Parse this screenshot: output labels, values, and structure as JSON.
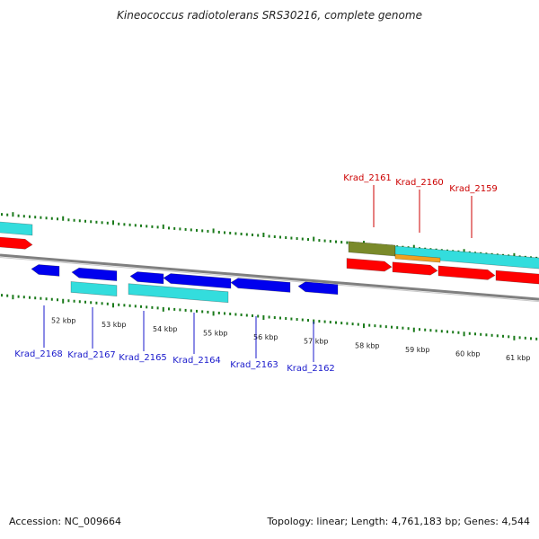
{
  "title": "Kineococcus radiotolerans SRS30216, complete genome",
  "footer": {
    "accession": "Accession: NC_009664",
    "summary": "Topology: linear; Length: 4,761,183 bp; Genes: 4,544"
  },
  "colors": {
    "backbone": "#808080",
    "tick": "#1a7a1a",
    "gene_red": "#ff0000",
    "gene_blue": "#0000ee",
    "cds_cyan": "#33dddd",
    "feature_olive": "#7a8a2a",
    "feature_orange": "#f0a020",
    "label_red": "#cc0000",
    "label_blue": "#1a1acc"
  },
  "kbp_labels": [
    "52 kbp",
    "53 kbp",
    "54 kbp",
    "55 kbp",
    "56 kbp",
    "57 kbp",
    "58 kbp",
    "59 kbp",
    "60 kbp",
    "61 kbp"
  ],
  "genes_upper": [
    {
      "label": "Krad_2161"
    },
    {
      "label": "Krad_2160"
    },
    {
      "label": "Krad_2159"
    }
  ],
  "genes_lower": [
    {
      "label": "Krad_2168"
    },
    {
      "label": "Krad_2167"
    },
    {
      "label": "Krad_2165"
    },
    {
      "label": "Krad_2164"
    },
    {
      "label": "Krad_2163"
    },
    {
      "label": "Krad_2162"
    }
  ]
}
